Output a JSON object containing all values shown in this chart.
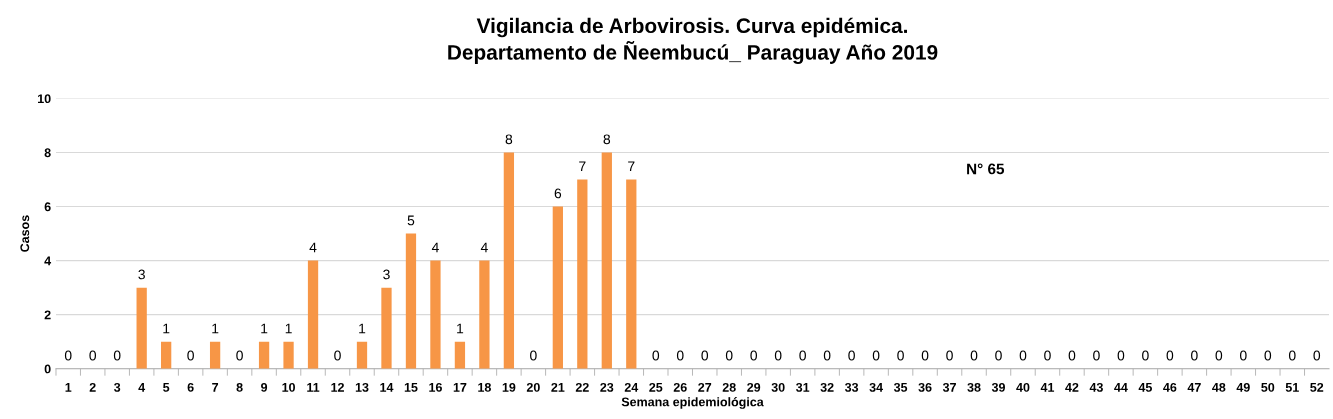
{
  "chart_data": {
    "type": "bar",
    "title": "Vigilancia de Arbovirosis. Curva epidémica.\nDepartamento de Ñeembucú_ Paraguay Año 2019",
    "xlabel": "Semana epidemiológica",
    "ylabel": "Casos",
    "categories": [
      "1",
      "2",
      "3",
      "4",
      "5",
      "6",
      "7",
      "8",
      "9",
      "10",
      "11",
      "12",
      "13",
      "14",
      "15",
      "16",
      "17",
      "18",
      "19",
      "20",
      "21",
      "22",
      "23",
      "24",
      "25",
      "26",
      "27",
      "28",
      "29",
      "30",
      "31",
      "32",
      "33",
      "34",
      "35",
      "36",
      "37",
      "38",
      "39",
      "40",
      "41",
      "42",
      "43",
      "44",
      "45",
      "46",
      "47",
      "48",
      "49",
      "50",
      "51",
      "52"
    ],
    "values": [
      0,
      0,
      0,
      3,
      1,
      0,
      1,
      0,
      1,
      1,
      4,
      0,
      1,
      3,
      5,
      4,
      1,
      4,
      8,
      0,
      6,
      7,
      8,
      7,
      0,
      0,
      0,
      0,
      0,
      0,
      0,
      0,
      0,
      0,
      0,
      0,
      0,
      0,
      0,
      0,
      0,
      0,
      0,
      0,
      0,
      0,
      0,
      0,
      0,
      0,
      0,
      0
    ],
    "color": "#f79646",
    "ylim": [
      0,
      10
    ],
    "yticks": [
      0,
      2,
      4,
      6,
      8,
      10
    ],
    "grid": "y",
    "data_labels": true,
    "annotations": [
      "N° 65"
    ]
  }
}
